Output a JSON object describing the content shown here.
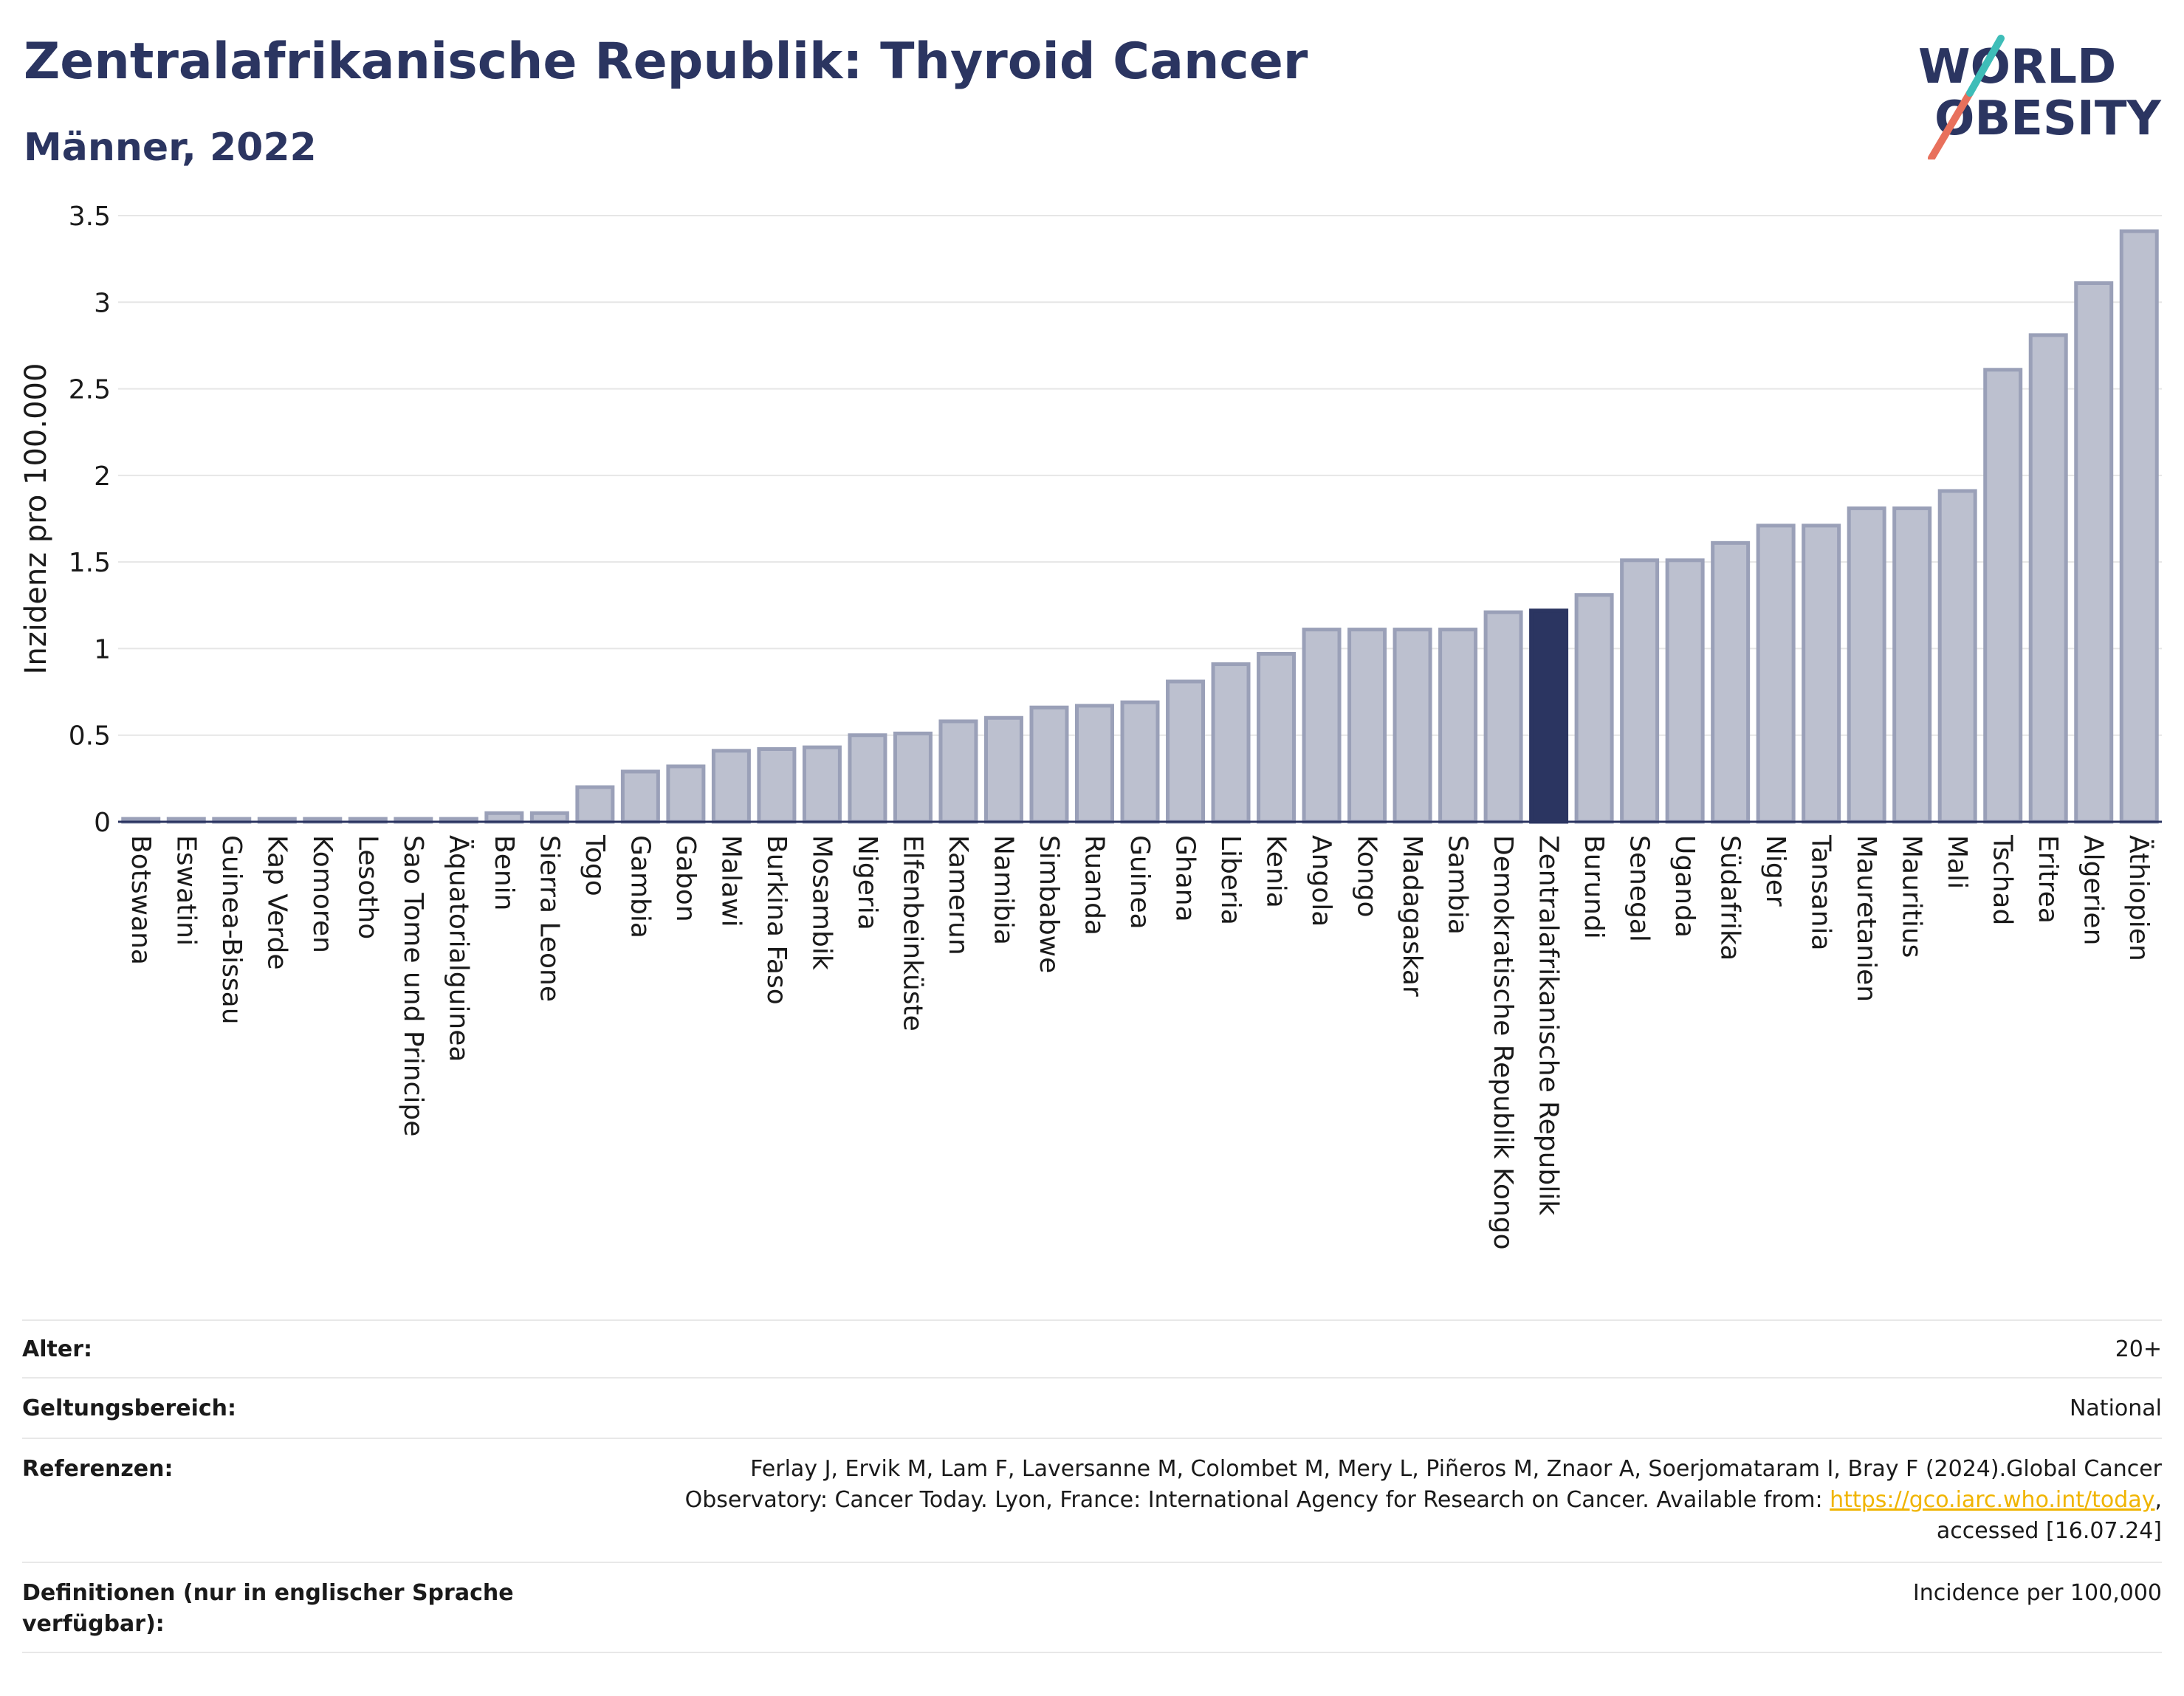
{
  "title": "Zentralafrikanische Republik: Thyroid Cancer",
  "subtitle": "Männer, 2022",
  "logo": {
    "line1": "WORLD",
    "line2": "OBESITY",
    "colors": {
      "text": "#2b3561",
      "slash_red": "#e8705c",
      "slash_teal": "#3ebdb8"
    }
  },
  "colors": {
    "bar": "#bcc0cf",
    "bar_edge": "#9aa0b8",
    "highlight": "#2b3561",
    "axis": "#2b3561",
    "grid": "#e6e6e6"
  },
  "chart_data": {
    "type": "bar",
    "title": "Zentralafrikanische Republik: Thyroid Cancer",
    "ylabel": "Inzidenz pro 100.000",
    "xlabel": "",
    "ylim": [
      0,
      3.5
    ],
    "yticks": [
      0,
      0.5,
      1,
      1.5,
      2,
      2.5,
      3,
      3.5
    ],
    "ytick_labels": [
      "0",
      "0.5",
      "1",
      "1.5",
      "2",
      "2.5",
      "3",
      "3.5"
    ],
    "grid": true,
    "highlight_category": "Zentralafrikanische Republik",
    "categories": [
      "Botswana",
      "Eswatini",
      "Guinea-Bissau",
      "Kap Verde",
      "Komoren",
      "Lesotho",
      "Sao Tome und Principe",
      "Äquatorialguinea",
      "Benin",
      "Sierra Leone",
      "Togo",
      "Gambia",
      "Gabon",
      "Malawi",
      "Burkina Faso",
      "Mosambik",
      "Nigeria",
      "Elfenbeinküste",
      "Kamerun",
      "Namibia",
      "Simbabwe",
      "Ruanda",
      "Guinea",
      "Ghana",
      "Liberia",
      "Kenia",
      "Angola",
      "Kongo",
      "Madagaskar",
      "Sambia",
      "Demokratische Republik Kongo",
      "Zentralafrikanische Republik",
      "Burundi",
      "Senegal",
      "Uganda",
      "Südafrika",
      "Niger",
      "Tansania",
      "Mauretanien",
      "Mauritius",
      "Mali",
      "Tschad",
      "Eritrea",
      "Algerien",
      "Äthiopien"
    ],
    "values": [
      0,
      0,
      0,
      0,
      0,
      0,
      0,
      0,
      0.05,
      0.05,
      0.2,
      0.29,
      0.32,
      0.41,
      0.42,
      0.43,
      0.5,
      0.51,
      0.58,
      0.6,
      0.66,
      0.67,
      0.69,
      0.81,
      0.91,
      0.97,
      1.11,
      1.11,
      1.11,
      1.11,
      1.21,
      1.22,
      1.31,
      1.51,
      1.51,
      1.61,
      1.71,
      1.71,
      1.81,
      1.81,
      1.91,
      2.61,
      2.81,
      3.11,
      3.41
    ]
  },
  "meta": {
    "age": {
      "label": "Alter:",
      "value": "20+"
    },
    "scope": {
      "label": "Geltungsbereich:",
      "value": "National"
    },
    "refs": {
      "label": "Referenzen:",
      "line1": "Ferlay J, Ervik M, Lam F, Laversanne M, Colombet M, Mery L, Piñeros M, Znaor A, Soerjomataram I, Bray F (2024).Global Cancer",
      "line2_prefix": "Observatory: Cancer Today. Lyon, France: International Agency for Research on Cancer. Available from: ",
      "link": "https://gco.iarc.who.int/today",
      "line2_suffix": ",",
      "line3": "accessed [16.07.24]"
    },
    "defs": {
      "label": "Definitionen (nur in englischer Sprache verfügbar):",
      "value": "Incidence per 100,000"
    }
  }
}
